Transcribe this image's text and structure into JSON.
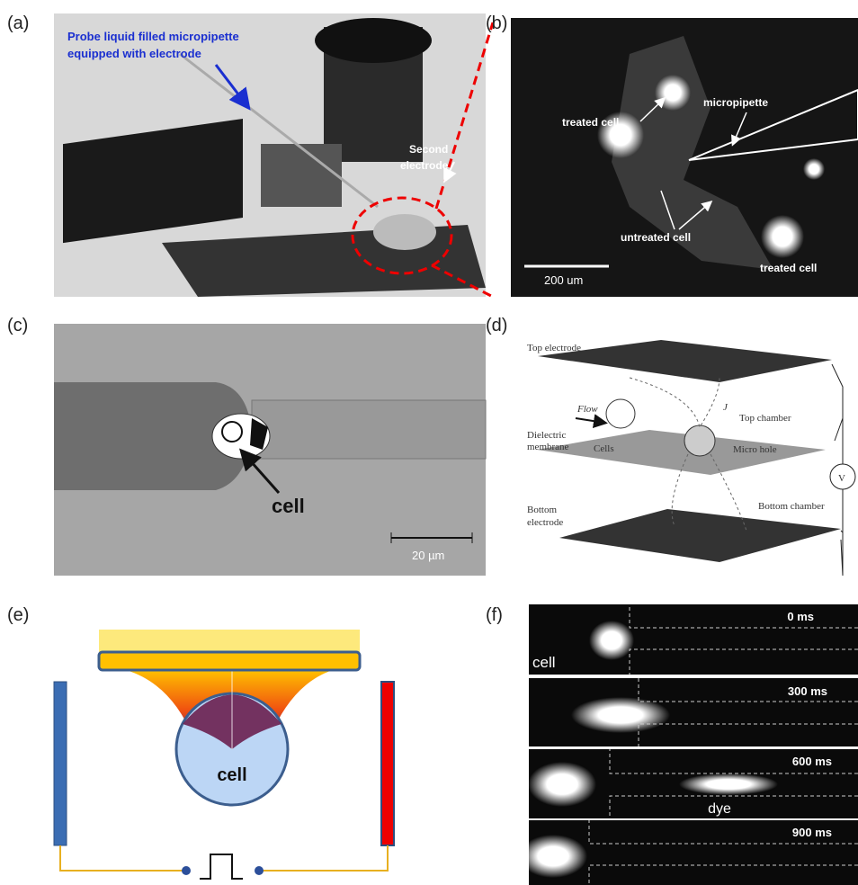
{
  "panels": {
    "a": {
      "label": "(a)",
      "probe_line1": "Probe liquid filled micropipette",
      "probe_line2": "equipped with electrode",
      "second_line1": "Second",
      "second_line2": "electrode"
    },
    "b": {
      "label": "(b)",
      "treated_top": "treated cell",
      "micropipette": "micropipette",
      "untreated": "untreated cell",
      "treated_bottom": "treated cell",
      "scale": "200 um"
    },
    "c": {
      "label": "(c)",
      "cell": "cell",
      "scale": "20 µm"
    },
    "d": {
      "label": "(d)",
      "top_electrode": "Top electrode",
      "flow": "Flow",
      "j": "J",
      "top_chamber": "Top chamber",
      "dielectric1": "Dielectric",
      "dielectric2": "membrane",
      "cells": "Cells",
      "micro_hole": "Micro hole",
      "v": "V",
      "bottom_chamber": "Bottom chamber",
      "bottom1": "Bottom",
      "bottom2": "electrode"
    },
    "e": {
      "label": "(e)",
      "cell": "cell"
    },
    "f": {
      "label": "(f)",
      "cell": "cell",
      "t0": "0 ms",
      "t300": "300 ms",
      "t600": "600 ms",
      "t900": "900 ms",
      "dye": "dye"
    }
  }
}
